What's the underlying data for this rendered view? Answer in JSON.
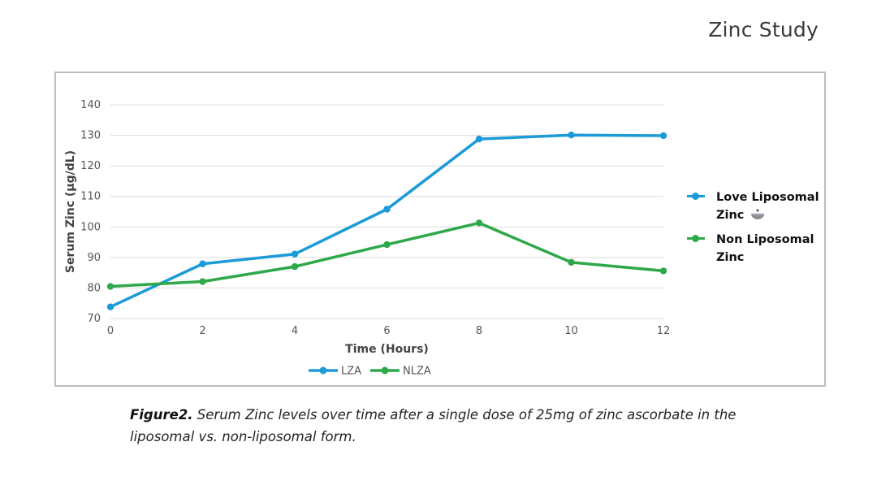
{
  "page": {
    "title": "Zinc Study"
  },
  "chart_data": {
    "type": "line",
    "x": [
      0,
      2,
      4,
      6,
      8,
      10,
      12
    ],
    "xlabel": "Time (Hours)",
    "ylabel": "Serum Zinc (µg/dL)",
    "xlim": [
      0,
      12
    ],
    "ylim": [
      70,
      140
    ],
    "xticks": [
      0,
      2,
      4,
      6,
      8,
      10,
      12
    ],
    "yticks": [
      70,
      80,
      90,
      100,
      110,
      120,
      130,
      140
    ],
    "grid": "horizontal",
    "series": [
      {
        "name": "LZA",
        "color": "#1b9bd7",
        "values": [
          73.8,
          87.9,
          91.1,
          105.8,
          128.8,
          130.1,
          129.9
        ]
      },
      {
        "name": "NLZA",
        "color": "#2fa84a",
        "values": [
          80.5,
          82.1,
          87.0,
          94.2,
          101.3,
          88.4,
          85.6
        ]
      }
    ],
    "legend_position": "bottom"
  },
  "side_legend": [
    {
      "label": "Love Liposomal Zinc",
      "color": "#1b9bd7",
      "icon": "bowl-icon"
    },
    {
      "label": "Non Liposomal Zinc",
      "color": "#2fa84a"
    }
  ],
  "caption": {
    "label": "Figure2.",
    "text": " Serum Zinc levels over time after a single dose of 25mg of zinc ascorbate in the liposomal vs. non-liposomal form."
  }
}
